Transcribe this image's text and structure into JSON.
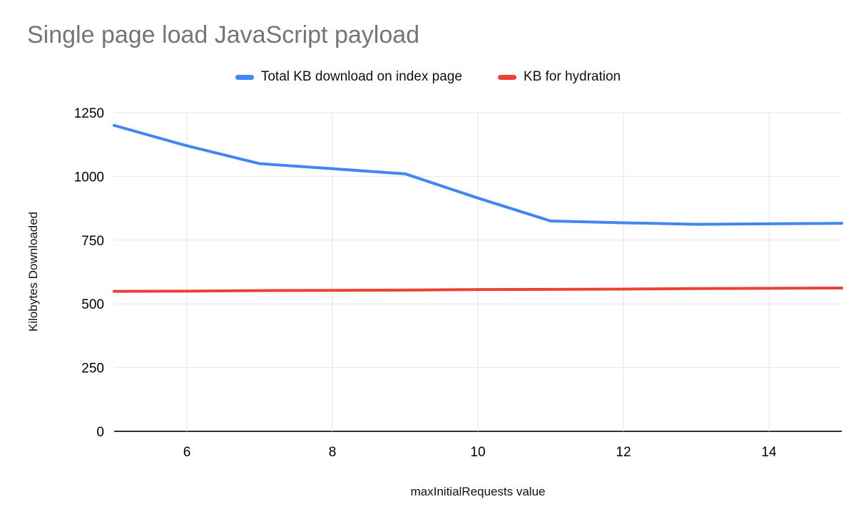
{
  "title": "Single page load JavaScript payload",
  "chart_data": {
    "type": "line",
    "title": "Single page load JavaScript payload",
    "xlabel": "maxInitialRequests value",
    "ylabel": "Kilobytes Downloaded",
    "x": [
      5,
      6,
      7,
      8,
      9,
      10,
      11,
      12,
      13,
      14,
      15
    ],
    "series": [
      {
        "name": "Total KB download on index page",
        "color": "#4285f4",
        "values": [
          1200,
          1120,
          1050,
          1030,
          1010,
          915,
          825,
          818,
          812,
          814,
          816
        ]
      },
      {
        "name": "KB for hydration",
        "color": "#ea4335",
        "values": [
          549,
          550,
          552,
          553,
          554,
          556,
          557,
          558,
          560,
          561,
          562
        ]
      }
    ],
    "xlim": [
      5,
      15
    ],
    "ylim": [
      0,
      1250
    ],
    "x_ticks": [
      6,
      8,
      10,
      12,
      14
    ],
    "y_ticks": [
      0,
      250,
      500,
      750,
      1000,
      1250
    ],
    "grid": true,
    "legend_position": "top",
    "colors": {
      "grid": "#e6e6e6",
      "axis": "#333333",
      "title_text": "#757575",
      "tick_text": "#000000"
    }
  }
}
